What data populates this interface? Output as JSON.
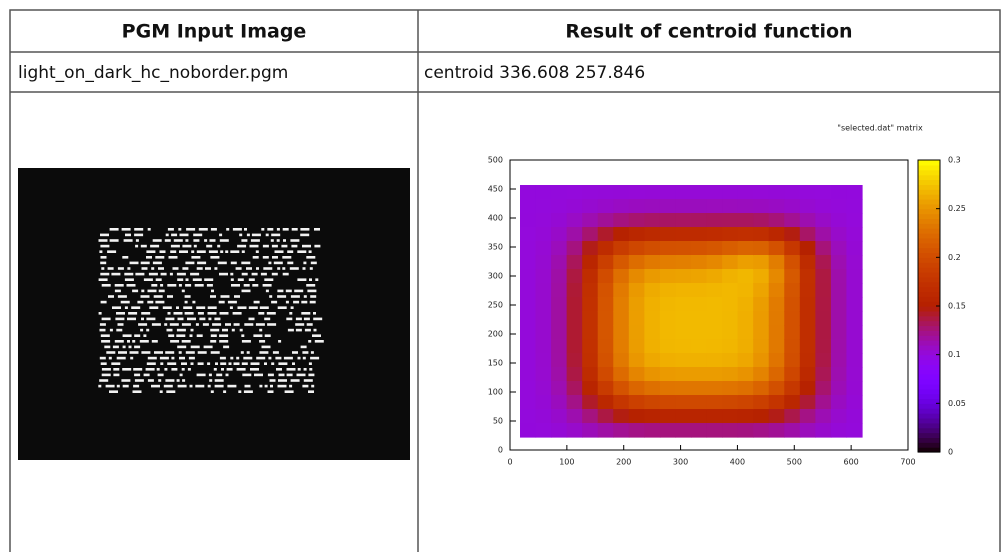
{
  "table": {
    "headers": [
      "PGM Input Image",
      "Result of centroid function"
    ],
    "rows": [
      [
        "light_on_dark_hc_noborder.pgm",
        "centroid 336.608 257.846"
      ]
    ]
  },
  "plot": {
    "title": "\"selected.dat\" matrix",
    "xticks": [
      "0",
      "100",
      "200",
      "300",
      "400",
      "500",
      "600",
      "700"
    ],
    "yticks": [
      "0",
      "50",
      "100",
      "150",
      "200",
      "250",
      "300",
      "350",
      "400",
      "450",
      "500"
    ],
    "cbticks": [
      "0",
      "0.05",
      "0.1",
      "0.15",
      "0.2",
      "0.25",
      "0.3"
    ]
  }
}
